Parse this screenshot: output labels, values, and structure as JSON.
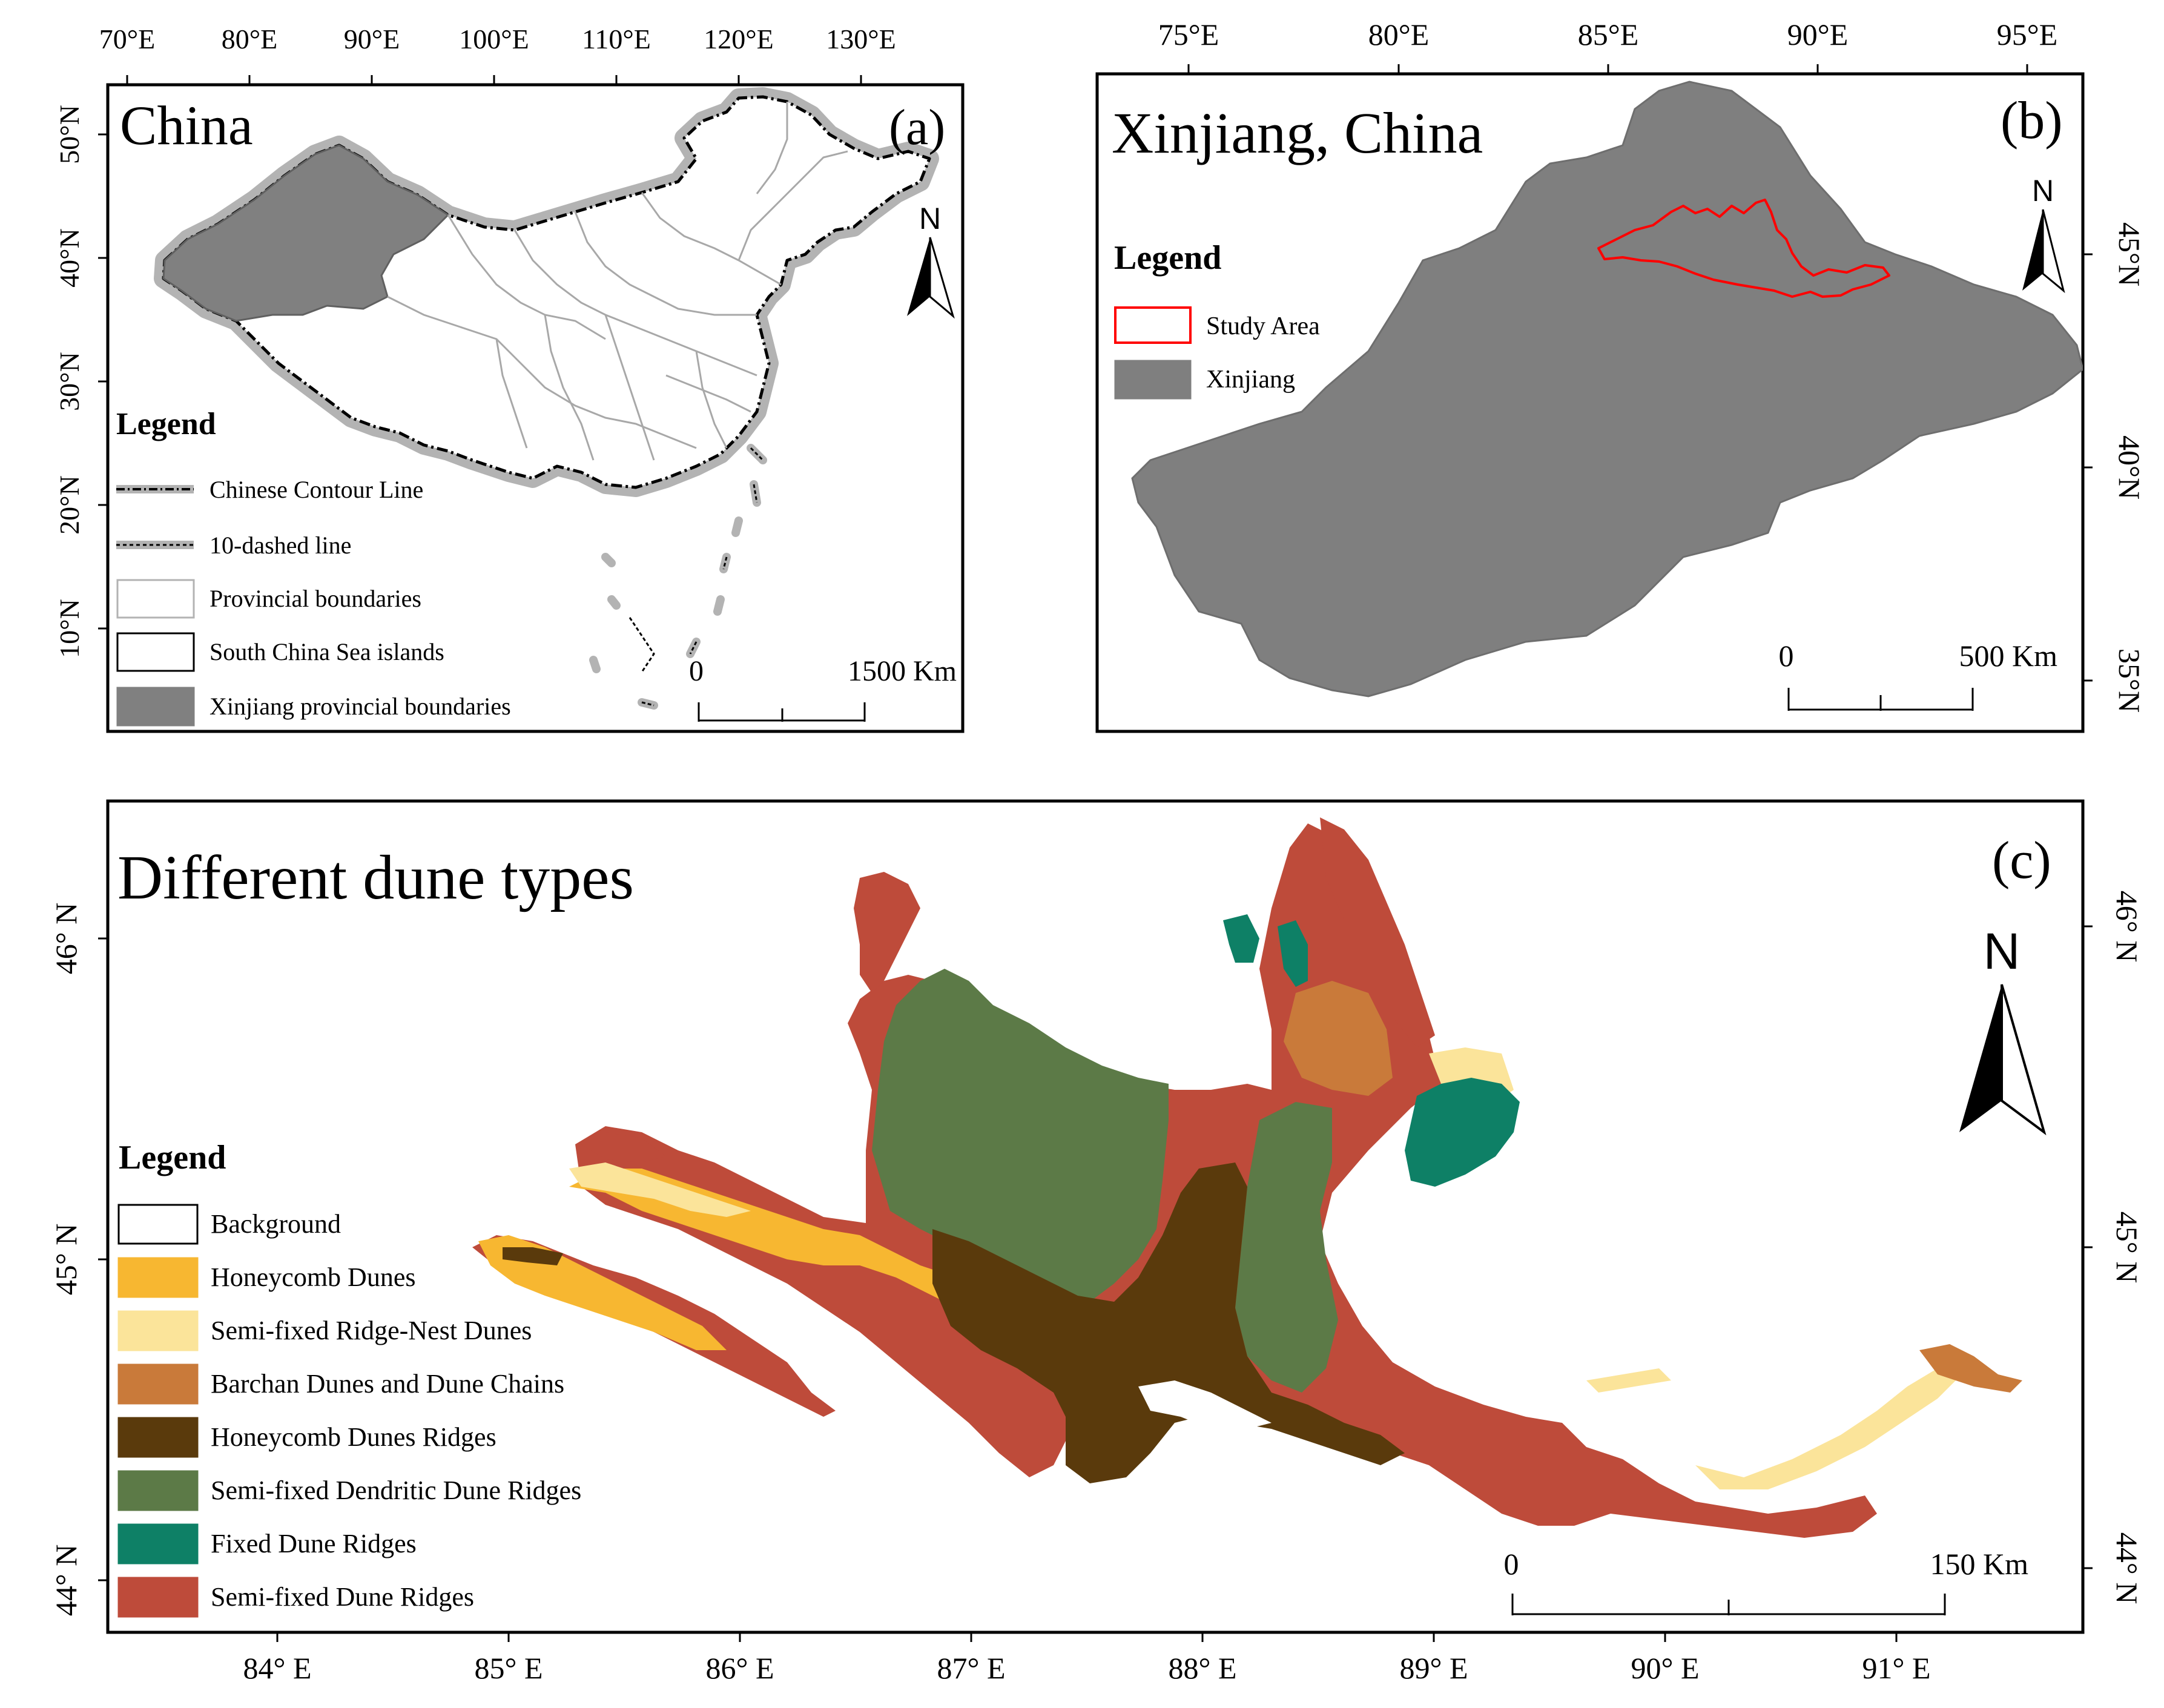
{
  "panel_a": {
    "title": "China",
    "label": "(a)",
    "lon_ticks": [
      "70°E",
      "80°E",
      "90°E",
      "100°E",
      "110°E",
      "120°E",
      "130°E"
    ],
    "lat_ticks": [
      "50°N",
      "40°N",
      "30°N",
      "20°N",
      "10°N"
    ],
    "legend_title": "Legend",
    "legend_items": [
      {
        "label": "Chinese Contour Line",
        "symbol": "contour-line"
      },
      {
        "label": "10-dashed line",
        "symbol": "dashed-line"
      },
      {
        "label": "Provincial boundaries",
        "symbol": "light-box"
      },
      {
        "label": "South China Sea islands",
        "symbol": "black-box"
      },
      {
        "label": "Xinjiang provincial boundaries",
        "symbol": "gray-fill",
        "color": "#808080"
      }
    ],
    "scale": {
      "start": "0",
      "end": "1500 Km"
    },
    "north": "N"
  },
  "panel_b": {
    "title": "Xinjiang, China",
    "label": "(b)",
    "lon_ticks": [
      "75°E",
      "80°E",
      "85°E",
      "90°E",
      "95°E"
    ],
    "lat_ticks": [
      "45°N",
      "40°N",
      "35°N"
    ],
    "legend_title": "Legend",
    "legend_items": [
      {
        "label": "Study Area",
        "symbol": "red-outline",
        "color": "#ff0000"
      },
      {
        "label": "Xinjiang",
        "symbol": "gray-fill",
        "color": "#7f7f7f"
      }
    ],
    "scale": {
      "start": "0",
      "end": "500 Km"
    },
    "north": "N"
  },
  "panel_c": {
    "title": "Different dune types",
    "label": "(c)",
    "lon_ticks": [
      "84° E",
      "85° E",
      "86° E",
      "87° E",
      "88° E",
      "89° E",
      "90° E",
      "91° E"
    ],
    "lat_ticks_left": [
      "46° N",
      "45° N",
      "44° N"
    ],
    "lat_ticks_right": [
      "46° N",
      "45° N",
      "44° N"
    ],
    "legend_title": "Legend",
    "legend_items": [
      {
        "label": "Background",
        "color": "#ffffff"
      },
      {
        "label": "Honeycomb Dunes",
        "color": "#f7b731"
      },
      {
        "label": "Semi-fixed Ridge-Nest Dunes",
        "color": "#fbe49a"
      },
      {
        "label": "Barchan Dunes and Dune Chains",
        "color": "#c97a3a"
      },
      {
        "label": "Honeycomb Dunes Ridges",
        "color": "#5a3a0c"
      },
      {
        "label": "Semi-fixed Dendritic Dune Ridges",
        "color": "#5c7a47"
      },
      {
        "label": "Fixed Dune Ridges",
        "color": "#0e8066"
      },
      {
        "label": "Semi-fixed Dune Ridges",
        "color": "#be4b3a"
      }
    ],
    "scale": {
      "start": "0",
      "end": "150 Km"
    },
    "north": "N"
  }
}
